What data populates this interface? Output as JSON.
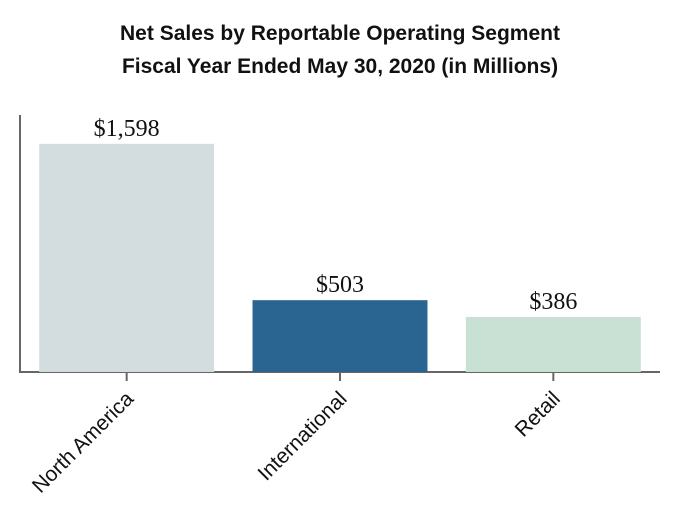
{
  "chart_data": {
    "type": "bar",
    "title": "Net Sales by Reportable Operating Segment",
    "subtitle": "Fiscal Year Ended May 30, 2020 (in Millions)",
    "categories": [
      "North America",
      "International",
      "Retail"
    ],
    "values": [
      1598,
      503,
      386
    ],
    "value_labels": [
      "$1,598",
      "$503",
      "$386"
    ],
    "colors": [
      "#d3dde0",
      "#2a6491",
      "#c9e0d5"
    ],
    "ylim": [
      0,
      1800
    ]
  }
}
